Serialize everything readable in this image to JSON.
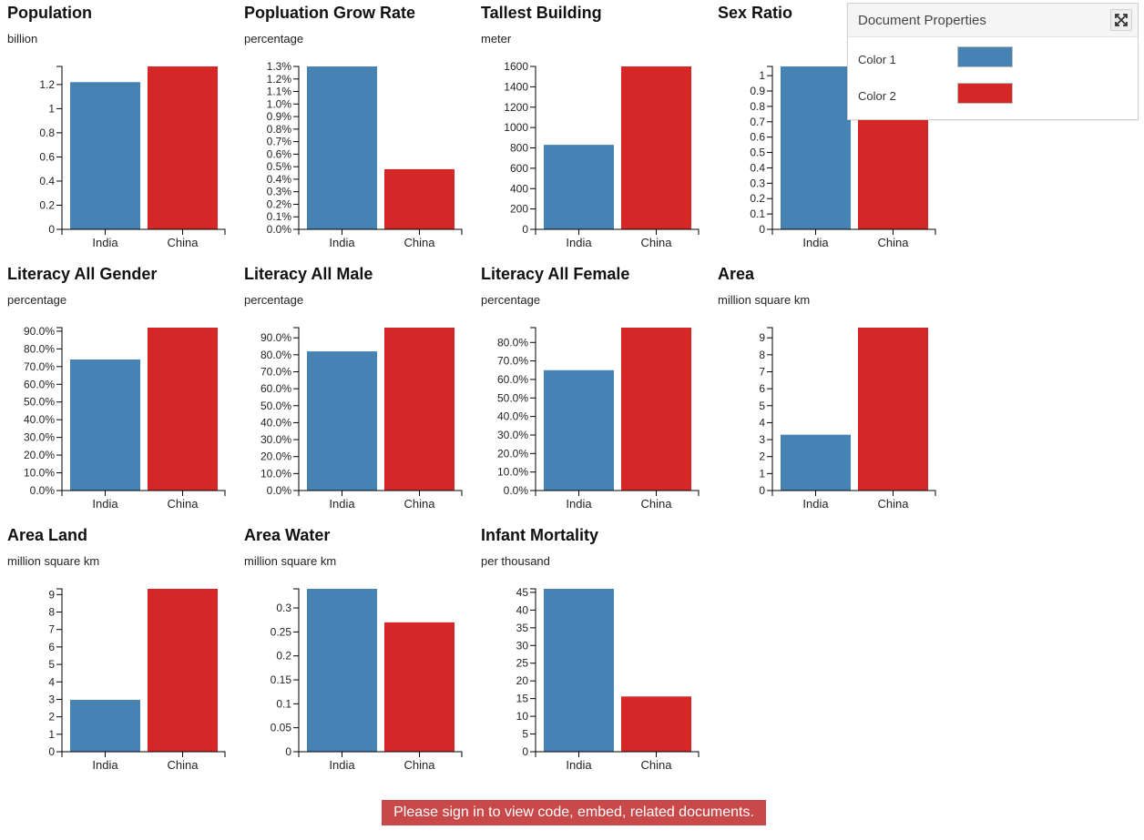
{
  "colors": {
    "color1": "#4682b4",
    "color2": "#d62728"
  },
  "properties": {
    "title": "Document Properties",
    "expand_icon": "expand-icon",
    "color1_label": "Color 1",
    "color2_label": "Color 2"
  },
  "signin": "Please sign in to view code, embed, related documents.",
  "chart_data": [
    {
      "type": "bar",
      "title": "Population",
      "subtitle": "billion",
      "categories": [
        "India",
        "China"
      ],
      "values": [
        1.22,
        1.35
      ],
      "ylim": [
        0,
        1.35
      ],
      "ticks": [
        0,
        0.2,
        0.4,
        0.6,
        0.8,
        1,
        1.2
      ],
      "tick_labels": [
        "0",
        "0.2",
        "0.4",
        "0.6",
        "0.8",
        "1",
        "1.2"
      ]
    },
    {
      "type": "bar",
      "title": "Popluation Grow Rate",
      "subtitle": "percentage",
      "categories": [
        "India",
        "China"
      ],
      "values": [
        1.3,
        0.48
      ],
      "ylim": [
        0,
        1.3
      ],
      "ticks": [
        0,
        0.1,
        0.2,
        0.3,
        0.4,
        0.5,
        0.6,
        0.7,
        0.8,
        0.9,
        1.0,
        1.1,
        1.2,
        1.3
      ],
      "tick_labels": [
        "0.0%",
        "0.1%",
        "0.2%",
        "0.3%",
        "0.4%",
        "0.5%",
        "0.6%",
        "0.7%",
        "0.8%",
        "0.9%",
        "1.0%",
        "1.1%",
        "1.2%",
        "1.3%"
      ]
    },
    {
      "type": "bar",
      "title": "Tallest Building",
      "subtitle": "meter",
      "categories": [
        "India",
        "China"
      ],
      "values": [
        830,
        1600
      ],
      "ylim": [
        0,
        1600
      ],
      "ticks": [
        0,
        200,
        400,
        600,
        800,
        1000,
        1200,
        1400,
        1600
      ],
      "tick_labels": [
        "0",
        "200",
        "400",
        "600",
        "800",
        "1000",
        "1200",
        "1400",
        "1600"
      ]
    },
    {
      "type": "bar",
      "title": "Sex Ratio",
      "subtitle": "",
      "categories": [
        "India",
        "China"
      ],
      "values": [
        1.06,
        0.92
      ],
      "ylim": [
        0,
        1.06
      ],
      "ticks": [
        0,
        0.1,
        0.2,
        0.3,
        0.4,
        0.5,
        0.6,
        0.7,
        0.8,
        0.9,
        1
      ],
      "tick_labels": [
        "0",
        "0.1",
        "0.2",
        "0.3",
        "0.4",
        "0.5",
        "0.6",
        "0.7",
        "0.8",
        "0.9",
        "1"
      ]
    },
    {
      "type": "bar",
      "title": "Literacy All Gender",
      "subtitle": "percentage",
      "categories": [
        "India",
        "China"
      ],
      "values": [
        74,
        92
      ],
      "ylim": [
        0,
        92
      ],
      "ticks": [
        0,
        10,
        20,
        30,
        40,
        50,
        60,
        70,
        80,
        90
      ],
      "tick_labels": [
        "0.0%",
        "10.0%",
        "20.0%",
        "30.0%",
        "40.0%",
        "50.0%",
        "60.0%",
        "70.0%",
        "80.0%",
        "90.0%"
      ]
    },
    {
      "type": "bar",
      "title": "Literacy All Male",
      "subtitle": "percentage",
      "categories": [
        "India",
        "China"
      ],
      "values": [
        82,
        96
      ],
      "ylim": [
        0,
        96
      ],
      "ticks": [
        0,
        10,
        20,
        30,
        40,
        50,
        60,
        70,
        80,
        90
      ],
      "tick_labels": [
        "0.0%",
        "10.0%",
        "20.0%",
        "30.0%",
        "40.0%",
        "50.0%",
        "60.0%",
        "70.0%",
        "80.0%",
        "90.0%"
      ]
    },
    {
      "type": "bar",
      "title": "Literacy All Female",
      "subtitle": "percentage",
      "categories": [
        "India",
        "China"
      ],
      "values": [
        65,
        88
      ],
      "ylim": [
        0,
        88
      ],
      "ticks": [
        0,
        10,
        20,
        30,
        40,
        50,
        60,
        70,
        80
      ],
      "tick_labels": [
        "0.0%",
        "10.0%",
        "20.0%",
        "30.0%",
        "40.0%",
        "50.0%",
        "60.0%",
        "70.0%",
        "80.0%"
      ]
    },
    {
      "type": "bar",
      "title": "Area",
      "subtitle": "million square km",
      "categories": [
        "India",
        "China"
      ],
      "values": [
        3.29,
        9.6
      ],
      "ylim": [
        0,
        9.6
      ],
      "ticks": [
        0,
        1,
        2,
        3,
        4,
        5,
        6,
        7,
        8,
        9
      ],
      "tick_labels": [
        "0",
        "1",
        "2",
        "3",
        "4",
        "5",
        "6",
        "7",
        "8",
        "9"
      ]
    },
    {
      "type": "bar",
      "title": "Area Land",
      "subtitle": "million square km",
      "categories": [
        "India",
        "China"
      ],
      "values": [
        2.97,
        9.33
      ],
      "ylim": [
        0,
        9.33
      ],
      "ticks": [
        0,
        1,
        2,
        3,
        4,
        5,
        6,
        7,
        8,
        9
      ],
      "tick_labels": [
        "0",
        "1",
        "2",
        "3",
        "4",
        "5",
        "6",
        "7",
        "8",
        "9"
      ]
    },
    {
      "type": "bar",
      "title": "Area Water",
      "subtitle": "million square km",
      "categories": [
        "India",
        "China"
      ],
      "values": [
        0.34,
        0.27
      ],
      "ylim": [
        0,
        0.34
      ],
      "ticks": [
        0,
        0.05,
        0.1,
        0.15,
        0.2,
        0.25,
        0.3
      ],
      "tick_labels": [
        "0",
        "0.05",
        "0.1",
        "0.15",
        "0.2",
        "0.25",
        "0.3"
      ]
    },
    {
      "type": "bar",
      "title": "Infant Mortality",
      "subtitle": "per thousand",
      "categories": [
        "India",
        "China"
      ],
      "values": [
        46,
        15.6
      ],
      "ylim": [
        0,
        46
      ],
      "ticks": [
        0,
        5,
        10,
        15,
        20,
        25,
        30,
        35,
        40,
        45
      ],
      "tick_labels": [
        "0",
        "5",
        "10",
        "15",
        "20",
        "25",
        "30",
        "35",
        "40",
        "45"
      ]
    }
  ]
}
